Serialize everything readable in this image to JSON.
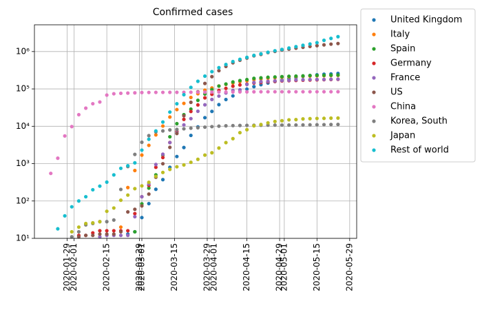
{
  "chart_data": {
    "type": "scatter",
    "title": "Confirmed cases",
    "log_y": true,
    "grid": true,
    "legend": "outside-right",
    "x": [
      "2020-01-22",
      "2020-01-25",
      "2020-01-28",
      "2020-01-31",
      "2020-02-03",
      "2020-02-06",
      "2020-02-09",
      "2020-02-12",
      "2020-02-15",
      "2020-02-18",
      "2020-02-21",
      "2020-02-24",
      "2020-02-27",
      "2020-03-01",
      "2020-03-04",
      "2020-03-07",
      "2020-03-10",
      "2020-03-13",
      "2020-03-16",
      "2020-03-19",
      "2020-03-22",
      "2020-03-25",
      "2020-03-28",
      "2020-03-31",
      "2020-04-03",
      "2020-04-06",
      "2020-04-09",
      "2020-04-12",
      "2020-04-15",
      "2020-04-18",
      "2020-04-21",
      "2020-04-24",
      "2020-04-27",
      "2020-04-30",
      "2020-05-03",
      "2020-05-06",
      "2020-05-09",
      "2020-05-12",
      "2020-05-15",
      "2020-05-18",
      "2020-05-21",
      "2020-05-24"
    ],
    "xlim": [
      "2020-01-15",
      "2020-06-01"
    ],
    "xticks": [
      "2020-01-29",
      "2020-02-01",
      "2020-02-15",
      "2020-02-29",
      "2020-03-01",
      "2020-03-15",
      "2020-03-29",
      "2020-04-01",
      "2020-04-15",
      "2020-04-29",
      "2020-05-01",
      "2020-05-15",
      "2020-05-29"
    ],
    "ylim": [
      10,
      5200000
    ],
    "yticks": [
      {
        "value": 10,
        "label": "10¹"
      },
      {
        "value": 100,
        "label": "10²"
      },
      {
        "value": 1000,
        "label": "10³"
      },
      {
        "value": 10000,
        "label": "10⁴"
      },
      {
        "value": 100000,
        "label": "10⁵"
      },
      {
        "value": 1000000,
        "label": "10⁶"
      }
    ],
    "series": [
      {
        "name": "United Kingdom",
        "color": "#1f77b4",
        "values": [
          null,
          null,
          null,
          null,
          null,
          null,
          null,
          null,
          null,
          null,
          null,
          13,
          15,
          36,
          85,
          206,
          373,
          800,
          1550,
          2700,
          5700,
          9600,
          17000,
          25000,
          38000,
          52000,
          65000,
          85000,
          99000,
          115000,
          130000,
          144000,
          158000,
          172000,
          187000,
          202000,
          216000,
          227000,
          238000,
          247000,
          252000,
          260000
        ]
      },
      {
        "name": "Italy",
        "color": "#ff7f0e",
        "values": [
          null,
          null,
          null,
          null,
          null,
          null,
          null,
          null,
          null,
          null,
          20,
          229,
          655,
          1694,
          3089,
          5883,
          10149,
          17660,
          27980,
          41035,
          59138,
          74386,
          92472,
          105792,
          119827,
          132547,
          143626,
          156363,
          165155,
          175925,
          183957,
          192994,
          199414,
          205463,
          210717,
          214457,
          218268,
          221216,
          223885,
          225886,
          228006,
          229858
        ]
      },
      {
        "name": "Spain",
        "color": "#2ca02c",
        "values": [
          null,
          null,
          null,
          null,
          null,
          null,
          null,
          null,
          null,
          null,
          null,
          null,
          15,
          84,
          222,
          500,
          1695,
          5232,
          11748,
          20410,
          28768,
          49515,
          73235,
          95923,
          119199,
          135032,
          153222,
          166831,
          177633,
          191726,
          198000,
          205000,
          209000,
          213000,
          217466,
          220325,
          223578,
          228030,
          230183,
          231350,
          233037,
          235772
        ]
      },
      {
        "name": "Germany",
        "color": "#d62728",
        "values": [
          null,
          null,
          null,
          null,
          12,
          12,
          14,
          16,
          16,
          16,
          16,
          16,
          46,
          130,
          262,
          799,
          1457,
          3675,
          7272,
          15320,
          24873,
          37323,
          57695,
          71808,
          91159,
          103374,
          118181,
          127854,
          134753,
          143724,
          148291,
          154999,
          158758,
          163009,
          165664,
          168162,
          171324,
          173171,
          175233,
          176551,
          178473,
          179986
        ]
      },
      {
        "name": "France",
        "color": "#9467bd",
        "values": [
          null,
          null,
          null,
          null,
          null,
          null,
          null,
          11,
          12,
          12,
          12,
          12,
          38,
          130,
          285,
          949,
          1784,
          3661,
          6650,
          10871,
          16018,
          25233,
          37575,
          52128,
          64338,
          78167,
          90676,
          95403,
          131361,
          149130,
          156480,
          159952,
          165093,
          167299,
          168925,
          174224,
          176207,
          178225,
          179630,
          179927,
          181700,
          182584
        ]
      },
      {
        "name": "US",
        "color": "#8c564b",
        "values": [
          null,
          null,
          null,
          null,
          11,
          12,
          12,
          13,
          13,
          13,
          15,
          51,
          60,
          74,
          153,
          432,
          994,
          2727,
          6421,
          19100,
          43800,
          84000,
          140000,
          213000,
          308000,
          400000,
          500000,
          585000,
          669000,
          767000,
          835000,
          939000,
          1010000,
          1095000,
          1160000,
          1230000,
          1300000,
          1370000,
          1440000,
          1510000,
          1580000,
          1640000
        ]
      },
      {
        "name": "China",
        "color": "#e377c2",
        "values": [
          548,
          1399,
          5509,
          9802,
          20438,
          30553,
          40150,
          44653,
          68347,
          74185,
          76249,
          77262,
          78498,
          79932,
          80422,
          80770,
          80904,
          80981,
          81077,
          81250,
          81435,
          81661,
          81999,
          82279,
          82511,
          82665,
          82883,
          83134,
          83356,
          83787,
          83853,
          83884,
          83918,
          83944,
          83959,
          83970,
          83990,
          84011,
          84029,
          84054,
          84063,
          84084
        ]
      },
      {
        "name": "Korea, South",
        "color": "#7f7f7f",
        "values": [
          null,
          null,
          null,
          11,
          15,
          23,
          25,
          28,
          28,
          31,
          204,
          833,
          1766,
          3736,
          5621,
          7041,
          7513,
          7979,
          8236,
          8565,
          8897,
          9137,
          9478,
          9786,
          10062,
          10284,
          10423,
          10512,
          10591,
          10653,
          10683,
          10718,
          10752,
          10774,
          10793,
          10806,
          10840,
          10936,
          10991,
          11065,
          11142,
          11190
        ]
      },
      {
        "name": "Japan",
        "color": "#bcbd22",
        "values": [
          null,
          null,
          null,
          15,
          20,
          25,
          26,
          28,
          53,
          65,
          105,
          144,
          214,
          254,
          317,
          455,
          581,
          701,
          825,
          924,
          1086,
          1307,
          1693,
          1953,
          2617,
          3654,
          4667,
          6748,
          8100,
          10296,
          11135,
          12368,
          13441,
          14088,
          14877,
          15078,
          15747,
          15968,
          16203,
          16305,
          16513,
          16581
        ]
      },
      {
        "name": "Rest of world",
        "color": "#17becf",
        "values": [
          null,
          18,
          40,
          70,
          100,
          130,
          200,
          250,
          320,
          500,
          750,
          880,
          1050,
          2300,
          4500,
          7500,
          13000,
          24000,
          40000,
          70000,
          110000,
          160000,
          220000,
          290000,
          370000,
          450000,
          540000,
          620000,
          700000,
          790000,
          870000,
          960000,
          1050000,
          1140000,
          1240000,
          1350000,
          1470000,
          1590000,
          1730000,
          2000000,
          2250000,
          2500000
        ]
      }
    ]
  }
}
